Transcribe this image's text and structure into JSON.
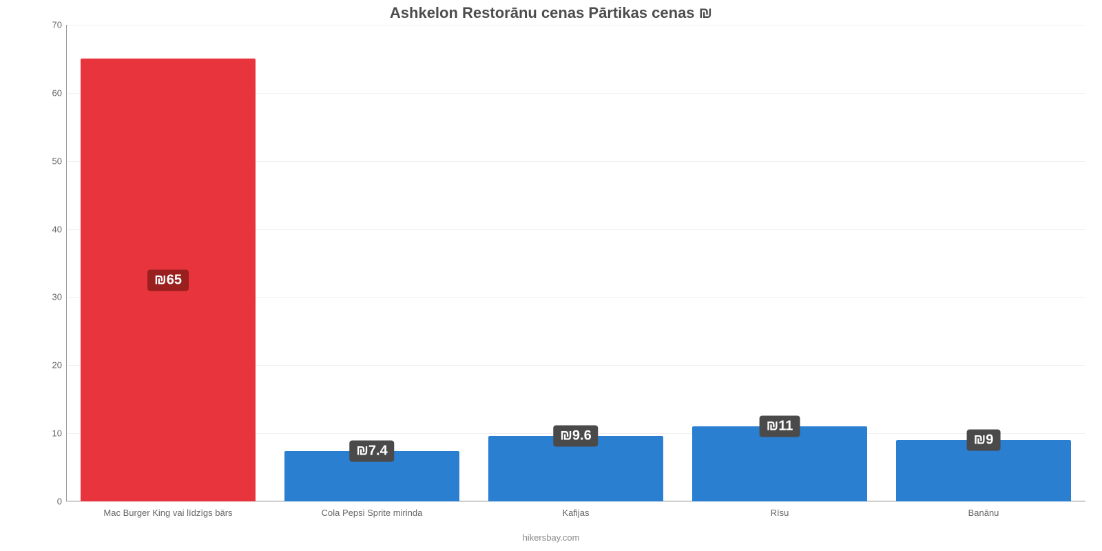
{
  "chart": {
    "type": "bar",
    "title": "Ashkelon Restorānu cenas Pārtikas cenas ₪",
    "title_fontsize": 22,
    "title_color": "#4d4d4d",
    "credit": "hikersbay.com",
    "credit_color": "#8a8a8a",
    "credit_fontsize": 13,
    "background_color": "#ffffff",
    "axis_line_color": "#999999",
    "grid_color": "#f0f0f0",
    "tick_label_color": "#666666",
    "tick_label_fontsize": 13,
    "xlabel_fontsize": 13,
    "ylim": [
      0,
      70
    ],
    "ytick_step": 10,
    "yticks": [
      0,
      10,
      20,
      30,
      40,
      50,
      60,
      70
    ],
    "bar_width_pct": 86,
    "categories": [
      "Mac Burger King vai līdzīgs bārs",
      "Cola Pepsi Sprite mirinda",
      "Kafijas",
      "Rīsu",
      "Banānu"
    ],
    "values": [
      65,
      7.4,
      9.6,
      11,
      9
    ],
    "value_labels": [
      "₪65",
      "₪7.4",
      "₪9.6",
      "₪11",
      "₪9"
    ],
    "bar_colors": [
      "#e8343c",
      "#2a7fd1",
      "#2a7fd1",
      "#2a7fd1",
      "#2a7fd1"
    ],
    "badge_bg_colors": [
      "#9a1f1f",
      "#4a4a4a",
      "#4a4a4a",
      "#4a4a4a",
      "#4a4a4a"
    ],
    "badge_text_color": "#ffffff",
    "badge_fontsize": 20,
    "value_label_mode": "center-of-bar-or-above-if-short",
    "short_bar_threshold_ratio": 0.18
  }
}
